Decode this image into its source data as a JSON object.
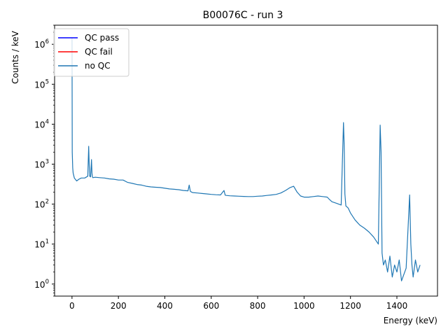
{
  "chart_data": {
    "type": "line",
    "title": "B00076C - run 3",
    "xlabel": "Energy (keV)",
    "ylabel": "Counts / keV",
    "xlim": [
      -75,
      1575
    ],
    "ylim": [
      0.5,
      3000000
    ],
    "yscale": "log",
    "grid": false,
    "legend_position": "top-left",
    "x_ticks": [
      0,
      200,
      400,
      600,
      800,
      1000,
      1200,
      1400
    ],
    "x_tick_labels": [
      "0",
      "200",
      "400",
      "600",
      "800",
      "1000",
      "1200",
      "1400"
    ],
    "y_ticks": [
      {
        "value": 1,
        "base": "10",
        "exp": "0"
      },
      {
        "value": 10,
        "base": "10",
        "exp": "1"
      },
      {
        "value": 100,
        "base": "10",
        "exp": "2"
      },
      {
        "value": 1000,
        "base": "10",
        "exp": "3"
      },
      {
        "value": 10000,
        "base": "10",
        "exp": "4"
      },
      {
        "value": 100000,
        "base": "10",
        "exp": "5"
      },
      {
        "value": 1000000,
        "base": "10",
        "exp": "6"
      }
    ],
    "series": [
      {
        "name": "QC pass",
        "color": "#0000ff",
        "x": [],
        "y": []
      },
      {
        "name": "QC fail",
        "color": "#ff0000",
        "x": [],
        "y": []
      },
      {
        "name": "no QC",
        "color": "#1f77b4",
        "x": [
          0,
          1,
          3,
          5,
          10,
          20,
          30,
          40,
          55,
          68,
          72,
          74,
          76,
          80,
          84,
          86,
          88,
          90,
          100,
          120,
          140,
          160,
          180,
          200,
          220,
          240,
          260,
          280,
          300,
          320,
          340,
          360,
          380,
          400,
          420,
          440,
          460,
          480,
          500,
          505,
          510,
          515,
          520,
          540,
          560,
          580,
          600,
          620,
          640,
          655,
          660,
          665,
          680,
          700,
          720,
          740,
          760,
          780,
          800,
          820,
          840,
          860,
          880,
          900,
          920,
          940,
          955,
          970,
          985,
          1000,
          1020,
          1040,
          1060,
          1080,
          1100,
          1110,
          1120,
          1140,
          1160,
          1170,
          1173,
          1176,
          1180,
          1190,
          1200,
          1220,
          1240,
          1260,
          1280,
          1300,
          1320,
          1328,
          1332,
          1336,
          1342,
          1350,
          1360,
          1370,
          1380,
          1390,
          1400,
          1410,
          1420,
          1440,
          1455,
          1460,
          1465,
          1470,
          1480,
          1490,
          1500
        ],
        "y": [
          1500000,
          2000,
          800,
          600,
          450,
          380,
          420,
          450,
          450,
          500,
          2800,
          1000,
          500,
          480,
          1300,
          600,
          480,
          460,
          470,
          460,
          450,
          430,
          420,
          400,
          400,
          350,
          330,
          310,
          300,
          280,
          270,
          265,
          260,
          250,
          240,
          235,
          230,
          220,
          215,
          300,
          210,
          200,
          195,
          190,
          185,
          180,
          175,
          172,
          170,
          220,
          168,
          165,
          162,
          160,
          158,
          156,
          155,
          155,
          158,
          160,
          165,
          170,
          175,
          190,
          220,
          260,
          280,
          200,
          160,
          150,
          150,
          155,
          160,
          155,
          150,
          130,
          115,
          105,
          95,
          11000,
          3000,
          180,
          90,
          80,
          60,
          40,
          30,
          25,
          20,
          15,
          10,
          9500,
          2000,
          6,
          3,
          4,
          2,
          5,
          1.5,
          3,
          2,
          4,
          1.2,
          2.5,
          170,
          10,
          3,
          1.5,
          4,
          2,
          3
        ]
      }
    ]
  }
}
